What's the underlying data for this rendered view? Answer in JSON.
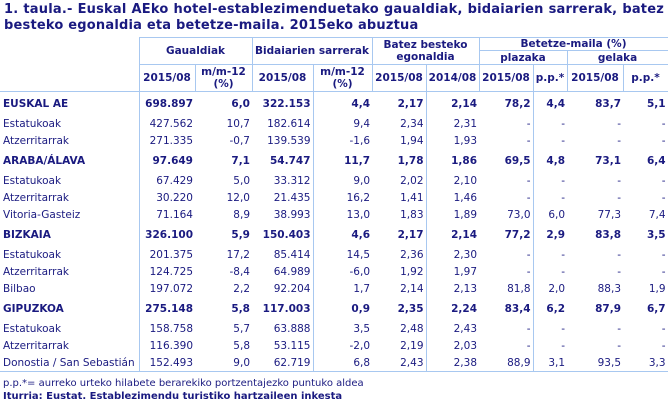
{
  "title": "1. taula.- Euskal AEko hotel-establezimenduetako gaualdiak, bidaiarien sarrerak, batez besteko egonaldia eta betetze-maila. 2015eko abuztua",
  "headers": {
    "gaualdiak": "Gaualdiak",
    "bidaiarien": "Bidaiarien sarrerak",
    "batez": "Batez besteko egonaldia",
    "betetze": "Betetze-maila (%)",
    "plazaka": "plazaka",
    "gelaka": "gelaka",
    "y2015": "2015/08",
    "y2014": "2014/08",
    "mm12": "m/m-12 (%)",
    "pp": "p.p.*"
  },
  "rows": [
    {
      "label": "EUSKAL AE",
      "group": true,
      "v": [
        "698.897",
        "6,0",
        "322.153",
        "4,4",
        "2,17",
        "2,14",
        "78,2",
        "4,4",
        "83,7",
        "5,1"
      ]
    },
    {
      "label": "Estatukoak",
      "v": [
        "427.562",
        "10,7",
        "182.614",
        "9,4",
        "2,34",
        "2,31",
        "-",
        "-",
        "-",
        "-"
      ]
    },
    {
      "label": "Atzerritarrak",
      "v": [
        "271.335",
        "-0,7",
        "139.539",
        "-1,6",
        "1,94",
        "1,93",
        "-",
        "-",
        "-",
        "-"
      ]
    },
    {
      "label": "ARABA/ÁLAVA",
      "group": true,
      "v": [
        "97.649",
        "7,1",
        "54.747",
        "11,7",
        "1,78",
        "1,86",
        "69,5",
        "4,8",
        "73,1",
        "6,4"
      ]
    },
    {
      "label": "Estatukoak",
      "v": [
        "67.429",
        "5,0",
        "33.312",
        "9,0",
        "2,02",
        "2,10",
        "-",
        "-",
        "-",
        "-"
      ]
    },
    {
      "label": "Atzerritarrak",
      "v": [
        "30.220",
        "12,0",
        "21.435",
        "16,2",
        "1,41",
        "1,46",
        "-",
        "-",
        "-",
        "-"
      ]
    },
    {
      "label": "Vitoria-Gasteiz",
      "v": [
        "71.164",
        "8,9",
        "38.993",
        "13,0",
        "1,83",
        "1,89",
        "73,0",
        "6,0",
        "77,3",
        "7,4"
      ]
    },
    {
      "label": "BIZKAIA",
      "group": true,
      "v": [
        "326.100",
        "5,9",
        "150.403",
        "4,6",
        "2,17",
        "2,14",
        "77,2",
        "2,9",
        "83,8",
        "3,5"
      ]
    },
    {
      "label": "Estatukoak",
      "v": [
        "201.375",
        "17,2",
        "85.414",
        "14,5",
        "2,36",
        "2,30",
        "-",
        "-",
        "-",
        "-"
      ]
    },
    {
      "label": "Atzerritarrak",
      "v": [
        "124.725",
        "-8,4",
        "64.989",
        "-6,0",
        "1,92",
        "1,97",
        "-",
        "-",
        "-",
        "-"
      ]
    },
    {
      "label": "Bilbao",
      "v": [
        "197.072",
        "2,2",
        "92.204",
        "1,7",
        "2,14",
        "2,13",
        "81,8",
        "2,0",
        "88,3",
        "1,9"
      ]
    },
    {
      "label": "GIPUZKOA",
      "group": true,
      "v": [
        "275.148",
        "5,8",
        "117.003",
        "0,9",
        "2,35",
        "2,24",
        "83,4",
        "6,2",
        "87,9",
        "6,7"
      ]
    },
    {
      "label": "Estatukoak",
      "v": [
        "158.758",
        "5,7",
        "63.888",
        "3,5",
        "2,48",
        "2,43",
        "-",
        "-",
        "-",
        "-"
      ]
    },
    {
      "label": "Atzerritarrak",
      "v": [
        "116.390",
        "5,8",
        "53.115",
        "-2,0",
        "2,19",
        "2,03",
        "-",
        "-",
        "-",
        "-"
      ]
    },
    {
      "label": "Donostia / San Sebastián",
      "v": [
        "152.493",
        "9,0",
        "62.719",
        "6,8",
        "2,43",
        "2,38",
        "88,9",
        "3,1",
        "93,5",
        "3,3"
      ]
    }
  ],
  "footnote": "p.p.*= aurreko urteko hilabete berarekiko portzentajezko puntuko aldea",
  "source": "Iturria: Eustat. Establezimendu turistiko hartzaileen inkesta"
}
